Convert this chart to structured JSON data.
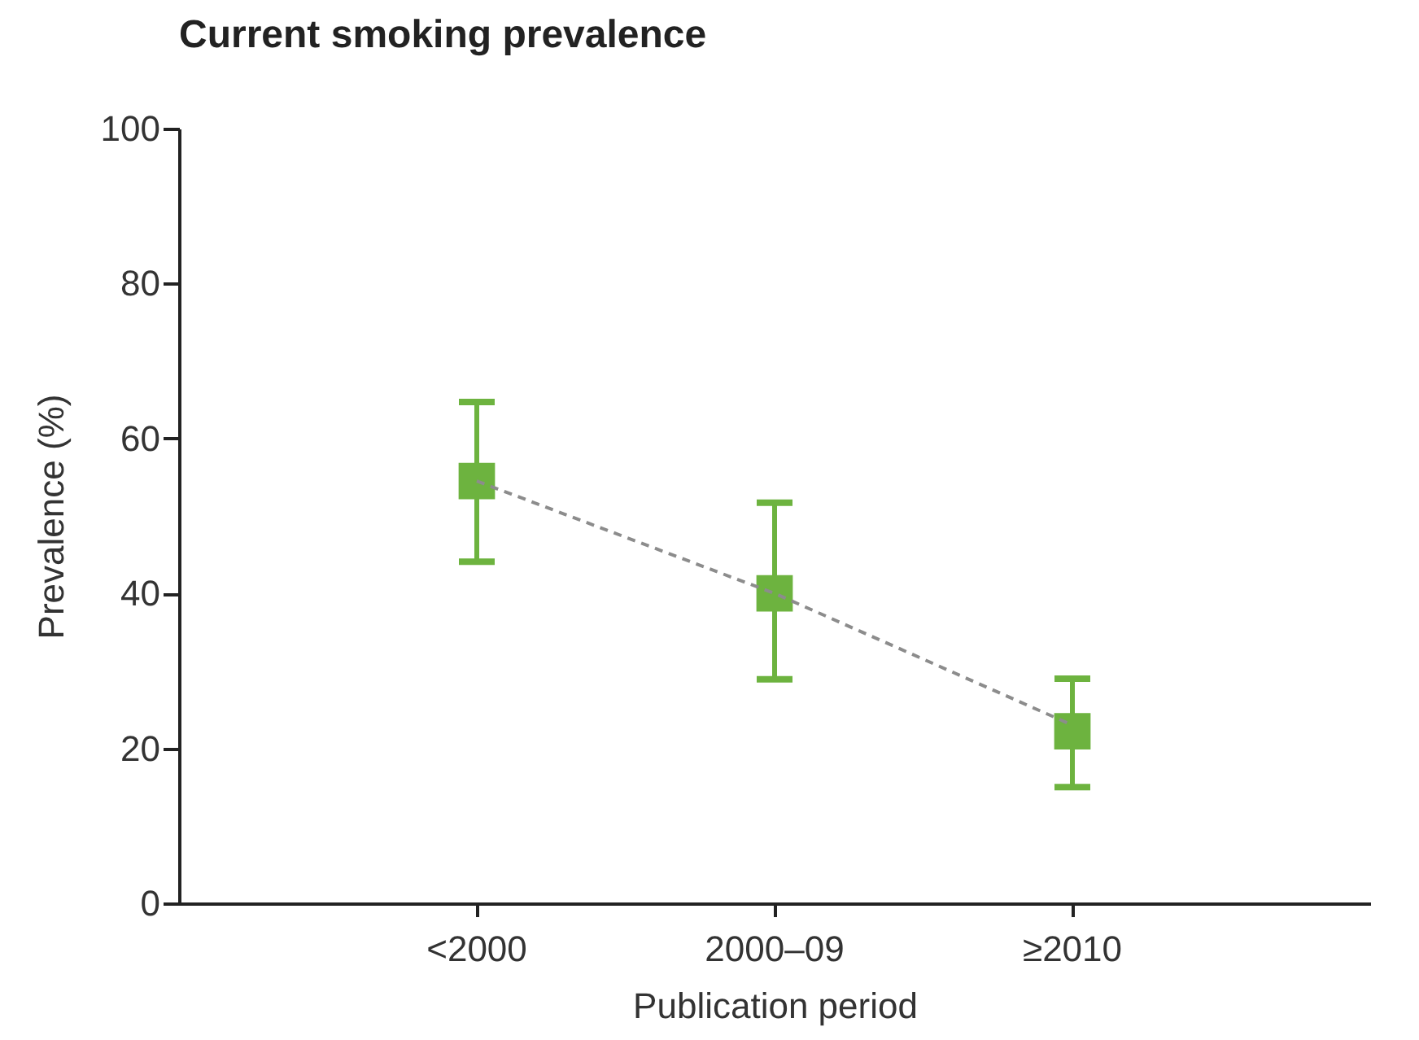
{
  "chart_data": {
    "type": "scatter",
    "title": "Current smoking prevalence",
    "xlabel": "Publication period",
    "ylabel": "Prevalence (%)",
    "categories": [
      "<2000",
      "2000–09",
      "≥2010"
    ],
    "series": [
      {
        "type": "line",
        "color": "#8c8c8c",
        "line_style": "dashed",
        "marker": "none",
        "values": [
          54.5,
          40,
          23
        ]
      },
      {
        "color": "#6db33f",
        "marker": "square",
        "values": [
          54.5,
          40,
          22.2
        ],
        "errors": [
          [
            44.1,
            64.7
          ],
          [
            28.9,
            51.7
          ],
          [
            15,
            29
          ]
        ]
      }
    ],
    "ylim": [
      0,
      100
    ],
    "yticks": [
      0,
      20,
      40,
      60,
      80,
      100
    ],
    "grid": false
  }
}
